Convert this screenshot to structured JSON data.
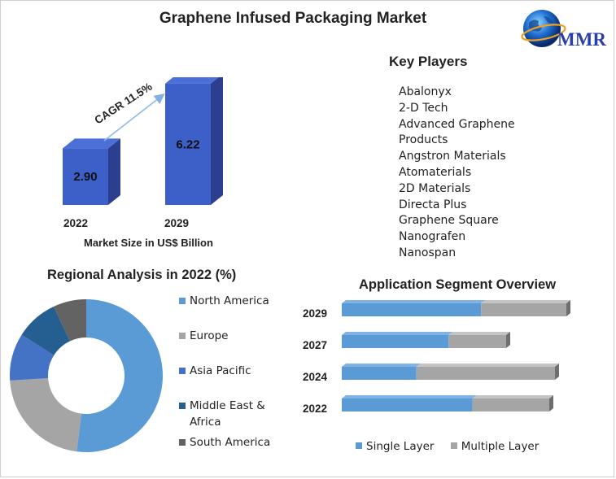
{
  "title": "Graphene Infused Packaging Market",
  "logo": {
    "text": "MMR"
  },
  "key_players": {
    "title": "Key Players",
    "items": [
      "Abalonyx",
      "2-D Tech",
      "Advanced Graphene",
      "Products",
      "Angstron Materials",
      "Atomaterials",
      "2D Materials",
      "Directa Plus",
      "Graphene Square",
      "Nanografen",
      "Nanospan"
    ]
  },
  "colors": {
    "bar_front": "#3d5fc8",
    "bar_side": "#2b3f8e",
    "bar_top": "#4a6fd6",
    "single_layer": "#5b9bd5",
    "multiple_layer": "#a5a5a5",
    "north_america": "#5b9bd5",
    "europe": "#a5a5a5",
    "asia_pacific": "#4472c4",
    "middle_east_africa": "#255e91",
    "south_america": "#636363"
  },
  "chart_data": [
    {
      "type": "bar",
      "categories": [
        "2022",
        "2029"
      ],
      "values": [
        2.9,
        6.22
      ],
      "value_labels": [
        "2.90",
        "6.22"
      ],
      "title": "",
      "xlabel": "Market Size in US$ Billion",
      "ylabel": "",
      "annotation": "CAGR 11.5%",
      "ylim": [
        0,
        7
      ]
    },
    {
      "type": "pie",
      "title": "Regional Analysis in 2022 (%)",
      "categories": [
        "North America",
        "Europe",
        "Asia Pacific",
        "Middle East & Africa",
        "South America"
      ],
      "values": [
        52,
        22,
        10,
        9,
        7
      ],
      "legend": "right"
    },
    {
      "type": "bar",
      "orientation": "horizontal",
      "stacked": true,
      "title": "Application Segment Overview",
      "categories": [
        "2029",
        "2027",
        "2024",
        "2022"
      ],
      "series": [
        {
          "name": "Single Layer",
          "values": [
            62,
            65,
            35,
            63
          ]
        },
        {
          "name": "Multiple Layer",
          "values": [
            38,
            35,
            65,
            37
          ]
        }
      ],
      "legend": "bottom"
    }
  ]
}
